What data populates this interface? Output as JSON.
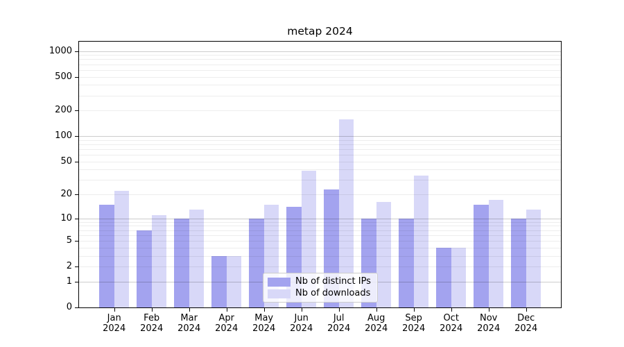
{
  "title": "metap 2024",
  "legend": {
    "items": [
      {
        "label": "Nb of distinct IPs",
        "color": "#a3a3ef"
      },
      {
        "label": "Nb of downloads",
        "color": "#d8d8f8"
      }
    ]
  },
  "chart_data": {
    "type": "bar",
    "title": "metap 2024",
    "scale": "log-like (log10 of 1+value), linear segment 0-1",
    "categories": [
      "Jan 2024",
      "Feb 2024",
      "Mar 2024",
      "Apr 2024",
      "May 2024",
      "Jun 2024",
      "Jul 2024",
      "Aug 2024",
      "Sep 2024",
      "Oct 2024",
      "Nov 2024",
      "Dec 2024"
    ],
    "series": [
      {
        "name": "Nb of distinct IPs",
        "color": "#a3a3ef",
        "values": [
          15,
          7,
          10,
          3,
          10,
          14,
          23,
          10,
          10,
          4,
          15,
          10
        ]
      },
      {
        "name": "Nb of downloads",
        "color": "#d8d8f8",
        "values": [
          22,
          11,
          13,
          3,
          15,
          39,
          157,
          16,
          34,
          4,
          17,
          13
        ]
      }
    ],
    "y_ticks": [
      0,
      1,
      2,
      5,
      10,
      20,
      50,
      100,
      200,
      500,
      1000
    ],
    "y_minor_gridlines": [
      2,
      3,
      4,
      5,
      6,
      7,
      8,
      9,
      20,
      30,
      40,
      50,
      60,
      70,
      80,
      90,
      200,
      300,
      400,
      500,
      600,
      700,
      800,
      900
    ],
    "y_major_gridlines": [
      1,
      10,
      100,
      1000
    ],
    "ylim": [
      0,
      1300
    ],
    "xlabel": "",
    "ylabel": "",
    "grid": true,
    "legend_position": "lower center"
  }
}
